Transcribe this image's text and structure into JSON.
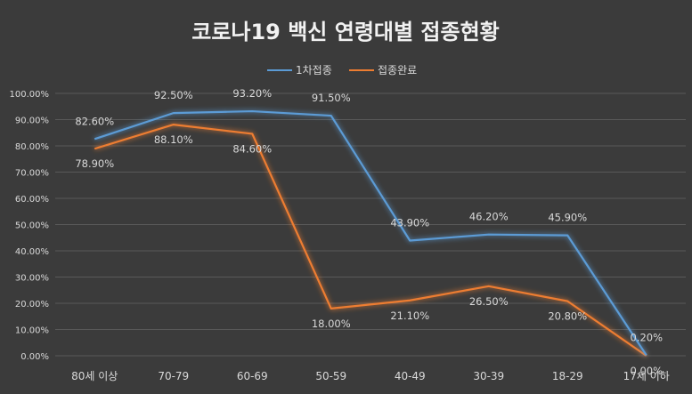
{
  "chart_data": {
    "type": "line",
    "title": "코로나19 백신 연령대별 접종현황",
    "categories": [
      "80세 이상",
      "70-79",
      "60-69",
      "50-59",
      "40-49",
      "30-39",
      "18-29",
      "17세 이하"
    ],
    "ylim": [
      0,
      100
    ],
    "y_ticks": [
      "0.00%",
      "10.00%",
      "20.00%",
      "30.00%",
      "40.00%",
      "50.00%",
      "60.00%",
      "70.00%",
      "80.00%",
      "90.00%",
      "100.00%"
    ],
    "grid": true,
    "legend_position": "top",
    "series": [
      {
        "name": "1차접종",
        "color": "#5b9bd5",
        "values": [
          82.6,
          92.5,
          93.2,
          91.5,
          43.9,
          46.2,
          45.9,
          0.2
        ],
        "labels": [
          "82.60%",
          "92.50%",
          "93.20%",
          "91.50%",
          "43.90%",
          "46.20%",
          "45.90%",
          "0.20%"
        ]
      },
      {
        "name": "접종완료",
        "color": "#ed7d31",
        "values": [
          78.9,
          88.1,
          84.6,
          18.0,
          21.1,
          26.5,
          20.8,
          0.0
        ],
        "labels": [
          "78.90%",
          "88.10%",
          "84.60%",
          "18.00%",
          "21.10%",
          "26.50%",
          "20.80%",
          "0.00%"
        ]
      }
    ]
  }
}
